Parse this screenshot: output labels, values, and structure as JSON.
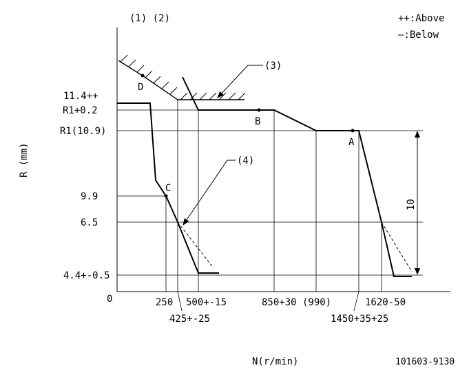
{
  "header": {
    "legend_ref_top": "(1) (2)",
    "legend_above": "++:Above",
    "legend_below": "—:Below"
  },
  "axes": {
    "ylabel": "R (mm)",
    "xlabel": "N(r/min)",
    "origin": "0"
  },
  "y_ticks": [
    {
      "label": "11.4++"
    },
    {
      "label": "R1+0.2"
    },
    {
      "label": "R1(10.9)"
    },
    {
      "label": "9.9"
    },
    {
      "label": "6.5"
    },
    {
      "label": "4.4+-0.5"
    }
  ],
  "x_ticks_upper": [
    {
      "label": "250"
    },
    {
      "label": "500+-15"
    },
    {
      "label": "850+30 (990)"
    },
    {
      "label": "1620-50"
    }
  ],
  "x_ticks_lower": [
    {
      "label": "425+-25"
    },
    {
      "label": "1450+35+25"
    }
  ],
  "points": {
    "a": "A",
    "b": "B",
    "c": "C",
    "d": "D"
  },
  "callouts": {
    "c3": "(3)",
    "c4": "(4)"
  },
  "dimension": {
    "label": "10"
  },
  "footer": {
    "part_number": "101603-9130"
  }
}
